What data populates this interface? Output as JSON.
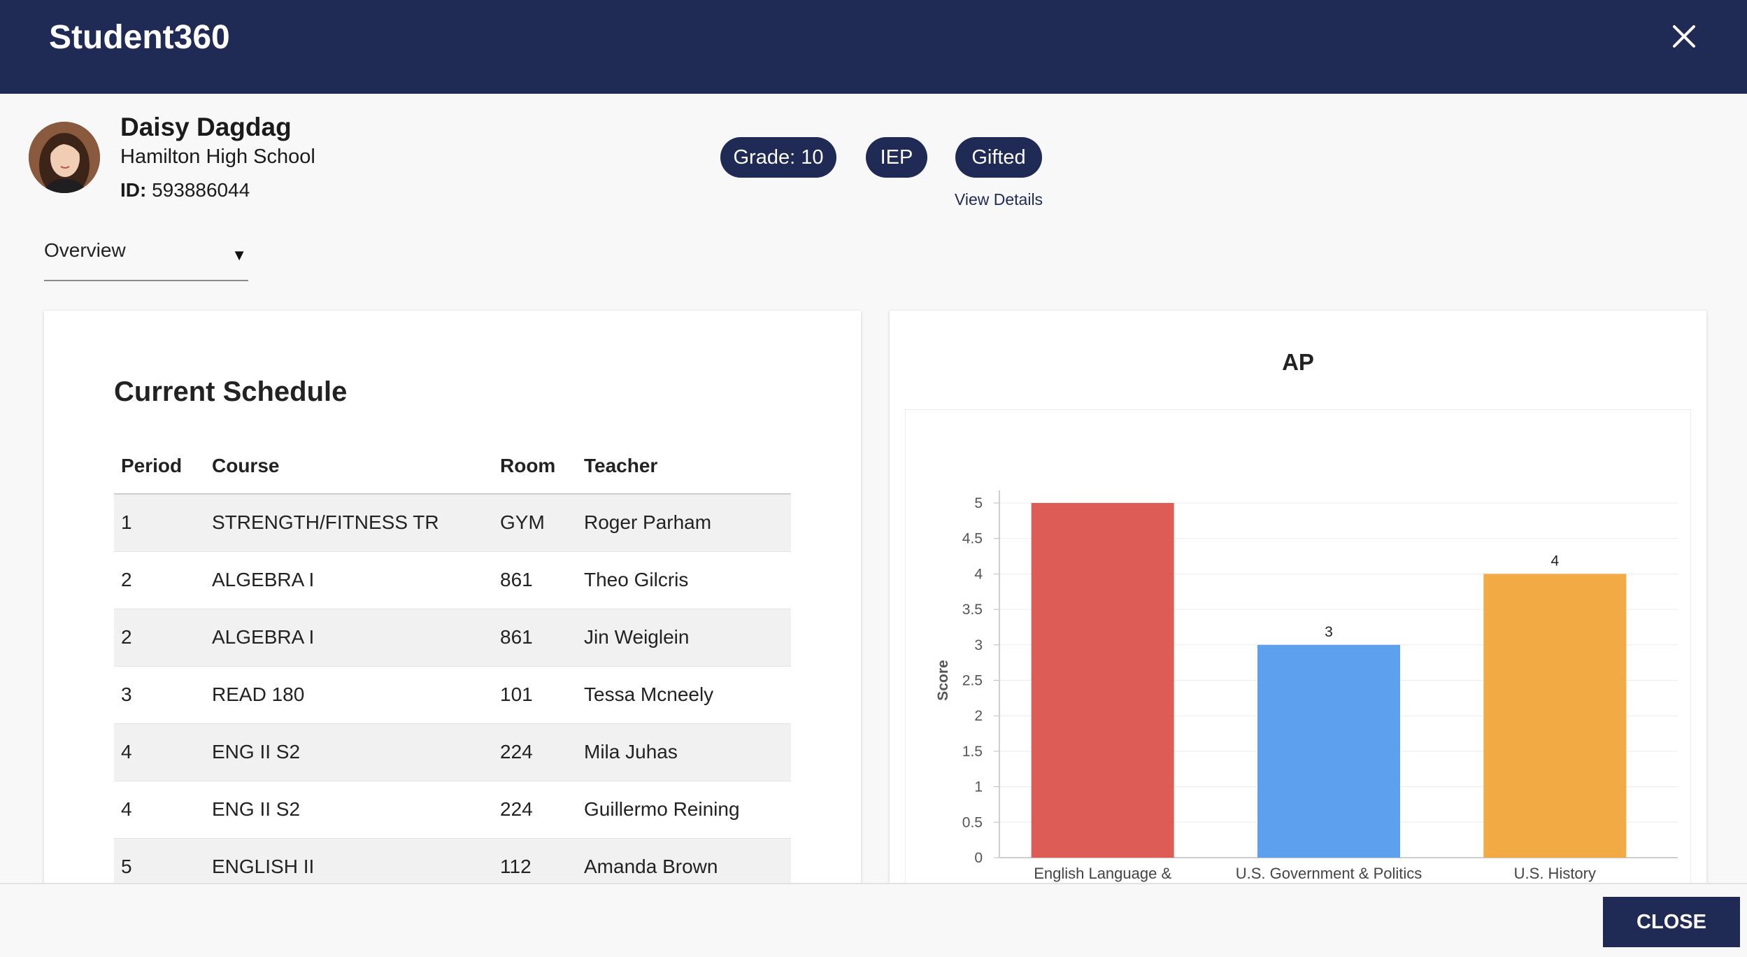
{
  "app": {
    "title": "Student360"
  },
  "student": {
    "name": "Daisy Dagdag",
    "school": "Hamilton High School",
    "id_label": "ID:",
    "id_value": "593886044"
  },
  "badges": {
    "grade": "Grade: 10",
    "iep": "IEP",
    "gifted": "Gifted",
    "view_details": "View Details"
  },
  "view_select": {
    "selected": "Overview"
  },
  "schedule": {
    "title": "Current Schedule",
    "columns": [
      "Period",
      "Course",
      "Room",
      "Teacher"
    ],
    "rows": [
      [
        "1",
        "STRENGTH/FITNESS TR",
        "GYM",
        "Roger Parham"
      ],
      [
        "2",
        "ALGEBRA I",
        "861",
        "Theo Gilcris"
      ],
      [
        "2",
        "ALGEBRA I",
        "861",
        "Jin Weiglein"
      ],
      [
        "3",
        "READ 180",
        "101",
        "Tessa Mcneely"
      ],
      [
        "4",
        "ENG II S2",
        "224",
        "Mila Juhas"
      ],
      [
        "4",
        "ENG II S2",
        "224",
        "Guillermo Reining"
      ],
      [
        "5",
        "ENGLISH II",
        "112",
        "Amanda Brown"
      ]
    ]
  },
  "chart_data": {
    "type": "bar",
    "title": "AP",
    "ylabel": "Score",
    "xlabel": "",
    "categories": [
      "English Language &",
      "U.S. Government & Politics",
      "U.S. History"
    ],
    "values": [
      5,
      3,
      4
    ],
    "data_labels": [
      "",
      "3",
      "4"
    ],
    "colors": [
      "#de5c56",
      "#5da0ee",
      "#f2aa45"
    ],
    "ylim": [
      0,
      5
    ],
    "yticks": [
      "0",
      "0.5",
      "1",
      "1.5",
      "2",
      "2.5",
      "3",
      "3.5",
      "4",
      "4.5",
      "5"
    ],
    "grid": true
  },
  "footer": {
    "close_label": "CLOSE"
  }
}
